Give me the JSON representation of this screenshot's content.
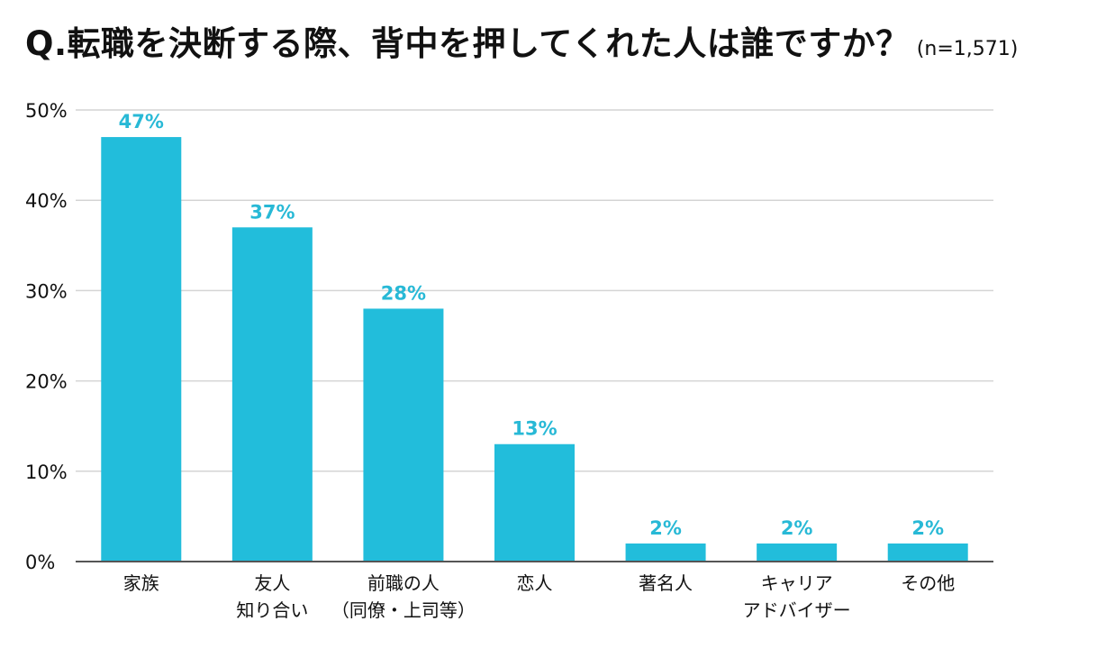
{
  "chart_data": {
    "type": "bar",
    "title": "Q.転職を決断する際、背中を押してくれた人は誰ですか？",
    "subtitle": "(n=1,571)",
    "xlabel": "",
    "ylabel": "",
    "ylim": [
      0,
      50
    ],
    "yticks": [
      0,
      10,
      20,
      30,
      40,
      50
    ],
    "ytick_labels": [
      "0%",
      "10%",
      "20%",
      "30%",
      "40%",
      "50%"
    ],
    "grid": true,
    "categories": [
      [
        "家族"
      ],
      [
        "友人",
        "知り合い"
      ],
      [
        "前職の人",
        "（同僚・上司等）"
      ],
      [
        "恋人"
      ],
      [
        "著名人"
      ],
      [
        "キャリア",
        "アドバイザー"
      ],
      [
        "その他"
      ]
    ],
    "values": [
      47,
      37,
      28,
      13,
      2,
      2,
      2
    ],
    "value_labels": [
      "47%",
      "37%",
      "28%",
      "13%",
      "2%",
      "2%",
      "2%"
    ],
    "colors": {
      "bar": "#22bddb",
      "value_label": "#28b9d6",
      "grid": "#d4d4d4",
      "axis": "#555555"
    }
  }
}
